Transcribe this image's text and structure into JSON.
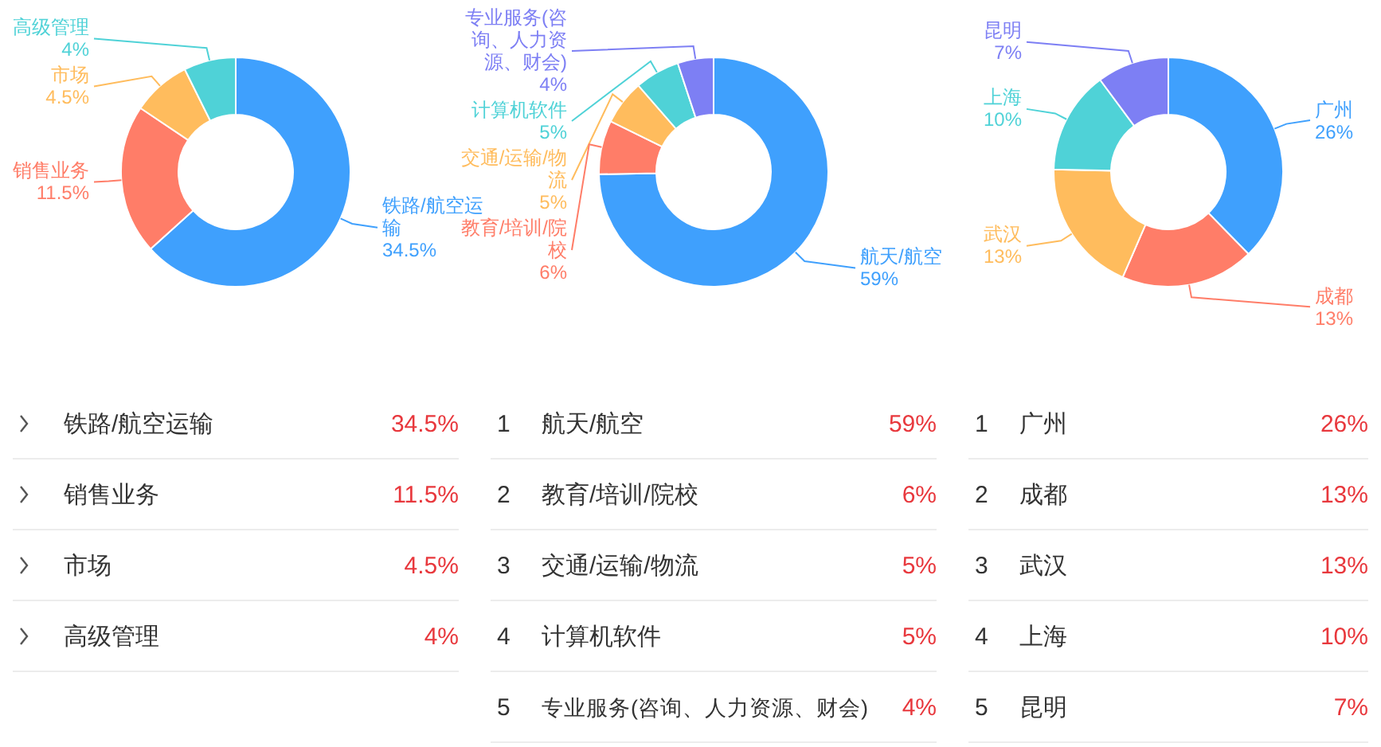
{
  "chart_data": [
    {
      "type": "donut",
      "categories": [
        "铁路/航空运输",
        "销售业务",
        "市场",
        "高级管理"
      ],
      "values": [
        34.5,
        11.5,
        4.5,
        4
      ],
      "value_labels": [
        "34.5%",
        "11.5%",
        "4.5%",
        "4%"
      ],
      "colors": [
        "#3fa0fd",
        "#ff7d68",
        "#ffbc5d",
        "#4fd2d7"
      ]
    },
    {
      "type": "donut",
      "categories": [
        "航天/航空",
        "教育/培训/院校",
        "交通/运输/物流",
        "计算机软件",
        "专业服务(咨询、人力资源、财会)"
      ],
      "values": [
        59,
        6,
        5,
        5,
        4
      ],
      "value_labels": [
        "59%",
        "6%",
        "5%",
        "5%",
        "4%"
      ],
      "colors": [
        "#3fa0fd",
        "#ff7d68",
        "#ffbc5d",
        "#4fd2d7",
        "#7d7ff4"
      ],
      "annotations": [
        "1",
        "2",
        "3",
        "4",
        "5"
      ]
    },
    {
      "type": "donut",
      "categories": [
        "广州",
        "成都",
        "武汉",
        "上海",
        "昆明"
      ],
      "values": [
        26,
        13,
        13,
        10,
        7
      ],
      "value_labels": [
        "26%",
        "13%",
        "13%",
        "10%",
        "7%"
      ],
      "colors": [
        "#3fa0fd",
        "#ff7d68",
        "#ffbc5d",
        "#4fd2d7",
        "#7d7ff4"
      ],
      "annotations": [
        "1",
        "2",
        "3",
        "4",
        "5"
      ]
    }
  ]
}
